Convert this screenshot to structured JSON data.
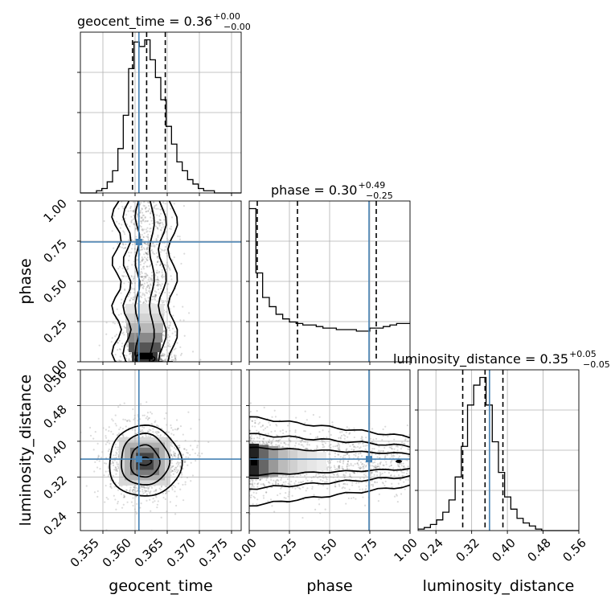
{
  "chart_data": {
    "type": "corner",
    "parameters": [
      "geocent_time",
      "phase",
      "luminosity_distance"
    ],
    "axis_labels": {
      "geocent_time": "geocent_time",
      "phase": "phase",
      "luminosity_distance": "luminosity_distance"
    },
    "ranges": {
      "geocent_time": [
        0.3515,
        0.3765
      ],
      "phase": [
        0.0,
        1.0
      ],
      "luminosity_distance": [
        0.2,
        0.56
      ]
    },
    "ticks": {
      "geocent_time": [
        "0.355",
        "0.360",
        "0.365",
        "0.370",
        "0.375"
      ],
      "phase": [
        "0.00",
        "0.25",
        "0.50",
        "0.75",
        "1.00"
      ],
      "luminosity_distance": [
        "0.24",
        "0.32",
        "0.40",
        "0.48",
        "0.56"
      ]
    },
    "titles": {
      "geocent_time": {
        "text": "geocent_time = 0.36",
        "upper": "+0.00",
        "lower": "−0.00"
      },
      "phase": {
        "text": "phase = 0.30",
        "upper": "+0.49",
        "lower": "−0.25"
      },
      "luminosity_distance": {
        "text": "luminosity_distance = 0.35",
        "upper": "+0.05",
        "lower": "−0.05"
      }
    },
    "injection": {
      "geocent_time": 0.3606,
      "phase": 0.745,
      "luminosity_distance": 0.36
    },
    "quantiles": {
      "geocent_time": [
        0.3596,
        0.3618,
        0.3647
      ],
      "phase": [
        0.05,
        0.3,
        0.79
      ],
      "luminosity_distance": [
        0.3,
        0.35,
        0.39
      ]
    },
    "histograms": {
      "geocent_time": {
        "edges_range": [
          0.3515,
          0.3765
        ],
        "counts": [
          0,
          0,
          0,
          1,
          2,
          5,
          10,
          20,
          35,
          56,
          68,
          66,
          69,
          60,
          52,
          42,
          30,
          22,
          14,
          10,
          6,
          4,
          2,
          1,
          1,
          0,
          0,
          0,
          0,
          0
        ]
      },
      "phase": {
        "edges_range": [
          0.0,
          1.0
        ],
        "counts": [
          100,
          58,
          42,
          36,
          31,
          28,
          26,
          25,
          24,
          24,
          23,
          22,
          22,
          21,
          21,
          21,
          20,
          20,
          22,
          22,
          23,
          24,
          25,
          25
        ]
      },
      "luminosity_distance": {
        "edges_range": [
          0.2,
          0.56
        ],
        "counts": [
          1,
          2,
          4,
          7,
          12,
          20,
          35,
          55,
          82,
          95,
          100,
          82,
          58,
          38,
          22,
          14,
          8,
          5,
          3,
          1,
          0,
          0,
          0,
          0,
          0,
          0
        ]
      }
    },
    "grid": true
  }
}
